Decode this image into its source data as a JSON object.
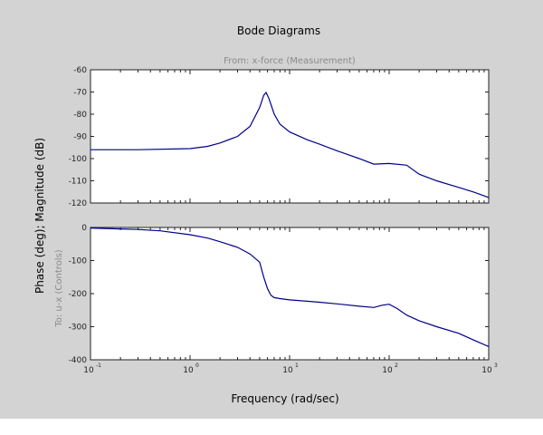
{
  "window": {
    "background": "#d3d3d3",
    "plot_background": "#ffffff",
    "axis_color": "#222222",
    "line_color": "#00008b"
  },
  "chart_data": {
    "type": "line",
    "title": "Bode Diagrams",
    "subtitle": "From: x-force (Measurement)",
    "xlabel": "Frequency (rad/sec)",
    "ylabel": "Phase (deg); Magnitude (dB)",
    "sub_ylabel": "To: u-x (Controls)",
    "xscale": "log",
    "xlim": [
      0.1,
      1000
    ],
    "xtick_labels": [
      {
        "value": 0.1,
        "base": "10",
        "exp": "-1"
      },
      {
        "value": 1,
        "base": "10",
        "exp": "0"
      },
      {
        "value": 10,
        "base": "10",
        "exp": "1"
      },
      {
        "value": 100,
        "base": "10",
        "exp": "2"
      },
      {
        "value": 1000,
        "base": "10",
        "exp": "3"
      }
    ],
    "panels": [
      {
        "name": "Magnitude (dB)",
        "ylim": [
          -120,
          -60
        ],
        "yticks": [
          -60,
          -70,
          -80,
          -90,
          -100,
          -110,
          -120
        ],
        "ytick_labels": [
          "-60",
          "-70",
          "-80",
          "-90",
          "-100",
          "-110",
          "-120"
        ],
        "x": [
          0.1,
          0.3,
          1,
          1.5,
          2,
          3,
          4,
          5,
          5.5,
          5.8,
          6.2,
          7,
          8,
          10,
          15,
          20,
          30,
          50,
          70,
          100,
          150,
          200,
          300,
          500,
          700,
          1000
        ],
        "y": [
          -96,
          -96,
          -95.5,
          -94.5,
          -93,
          -90,
          -85.5,
          -77,
          -71.5,
          -70.2,
          -73,
          -80,
          -84.5,
          -88,
          -91.5,
          -93.5,
          -96.5,
          -100,
          -102.5,
          -102.2,
          -103,
          -107,
          -110,
          -113,
          -115,
          -117.5
        ]
      },
      {
        "name": "Phase (deg)",
        "ylim": [
          -400,
          0
        ],
        "yticks": [
          0,
          -100,
          -200,
          -300,
          -400
        ],
        "ytick_labels": [
          "0",
          "-100",
          "-200",
          "-300",
          "-400"
        ],
        "x": [
          0.1,
          0.3,
          0.5,
          1,
          1.5,
          2,
          3,
          4,
          5,
          5.5,
          6,
          6.5,
          7,
          8,
          10,
          15,
          20,
          30,
          50,
          70,
          85,
          100,
          120,
          150,
          200,
          300,
          500,
          700,
          1000
        ],
        "y": [
          -2,
          -6,
          -10,
          -22,
          -32,
          -43,
          -60,
          -80,
          -105,
          -150,
          -185,
          -205,
          -212,
          -215,
          -219,
          -223,
          -226,
          -231,
          -238,
          -242,
          -235,
          -232,
          -245,
          -265,
          -282,
          -300,
          -320,
          -340,
          -360
        ]
      }
    ]
  }
}
